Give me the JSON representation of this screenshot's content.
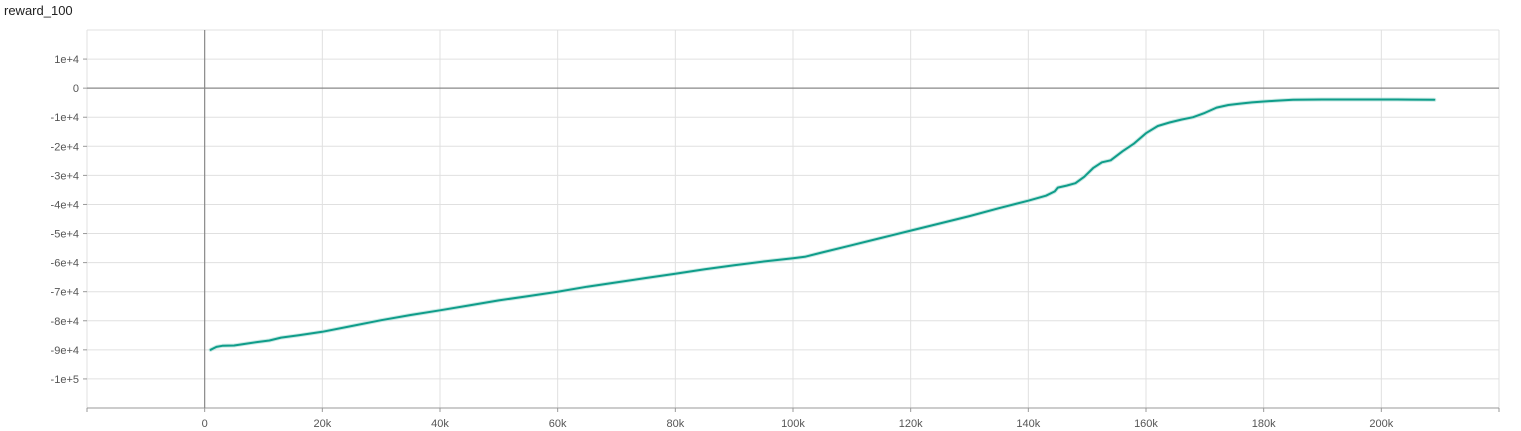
{
  "chart_data": {
    "type": "line",
    "title": "reward_100",
    "xlabel": "",
    "ylabel": "",
    "xlim": [
      -20000,
      220000
    ],
    "ylim": [
      -110000,
      20000
    ],
    "x_ticks": [
      0,
      20000,
      40000,
      60000,
      80000,
      100000,
      120000,
      140000,
      160000,
      180000,
      200000
    ],
    "x_tick_labels": [
      "0",
      "20k",
      "40k",
      "60k",
      "80k",
      "100k",
      "120k",
      "140k",
      "160k",
      "180k",
      "200k"
    ],
    "y_ticks": [
      10000,
      0,
      -10000,
      -20000,
      -30000,
      -40000,
      -50000,
      -60000,
      -70000,
      -80000,
      -90000,
      -100000
    ],
    "y_tick_labels": [
      "1e+4",
      "0",
      "-1e+4",
      "-2e+4",
      "-3e+4",
      "-4e+4",
      "-5e+4",
      "-6e+4",
      "-7e+4",
      "-8e+4",
      "-9e+4",
      "-1e+5"
    ],
    "grid": true,
    "line_color": "#0f9d8a",
    "smoothed_color": "#b2dfd8",
    "series": [
      {
        "points": [
          [
            1000,
            -90000
          ],
          [
            2000,
            -89000
          ],
          [
            3000,
            -88600
          ],
          [
            5000,
            -88500
          ],
          [
            7000,
            -87900
          ],
          [
            9000,
            -87300
          ],
          [
            11000,
            -86800
          ],
          [
            13000,
            -85800
          ],
          [
            16000,
            -85000
          ],
          [
            20000,
            -83800
          ],
          [
            25000,
            -81800
          ],
          [
            30000,
            -79800
          ],
          [
            35000,
            -78000
          ],
          [
            40000,
            -76400
          ],
          [
            45000,
            -74700
          ],
          [
            50000,
            -73000
          ],
          [
            55000,
            -71500
          ],
          [
            60000,
            -70000
          ],
          [
            65000,
            -68300
          ],
          [
            70000,
            -66800
          ],
          [
            75000,
            -65300
          ],
          [
            80000,
            -63800
          ],
          [
            85000,
            -62300
          ],
          [
            90000,
            -60900
          ],
          [
            95000,
            -59600
          ],
          [
            100000,
            -58500
          ],
          [
            102000,
            -58000
          ],
          [
            105000,
            -56500
          ],
          [
            110000,
            -54000
          ],
          [
            115000,
            -51500
          ],
          [
            120000,
            -49000
          ],
          [
            125000,
            -46500
          ],
          [
            130000,
            -44000
          ],
          [
            135000,
            -41300
          ],
          [
            140000,
            -38700
          ],
          [
            143000,
            -37000
          ],
          [
            144500,
            -35500
          ],
          [
            145000,
            -34200
          ],
          [
            146500,
            -33500
          ],
          [
            148000,
            -32700
          ],
          [
            149500,
            -30500
          ],
          [
            151000,
            -27500
          ],
          [
            152500,
            -25500
          ],
          [
            154000,
            -24800
          ],
          [
            156000,
            -21700
          ],
          [
            158000,
            -19000
          ],
          [
            160000,
            -15500
          ],
          [
            162000,
            -13000
          ],
          [
            164000,
            -11800
          ],
          [
            166000,
            -10800
          ],
          [
            168000,
            -10000
          ],
          [
            170000,
            -8500
          ],
          [
            172000,
            -6700
          ],
          [
            174000,
            -5800
          ],
          [
            176000,
            -5300
          ],
          [
            178000,
            -4900
          ],
          [
            180000,
            -4600
          ],
          [
            182000,
            -4300
          ],
          [
            185000,
            -4000
          ],
          [
            190000,
            -3900
          ],
          [
            195000,
            -3900
          ],
          [
            200000,
            -3900
          ],
          [
            205000,
            -3950
          ],
          [
            209000,
            -4000
          ]
        ]
      }
    ]
  }
}
